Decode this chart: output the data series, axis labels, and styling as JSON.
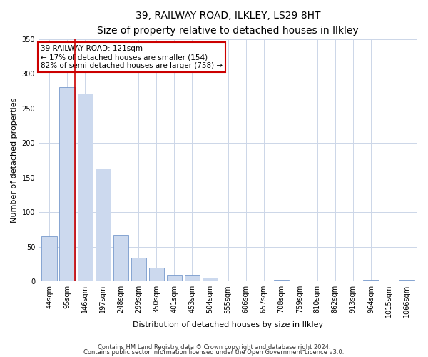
{
  "title1": "39, RAILWAY ROAD, ILKLEY, LS29 8HT",
  "title2": "Size of property relative to detached houses in Ilkley",
  "xlabel": "Distribution of detached houses by size in Ilkley",
  "ylabel": "Number of detached properties",
  "categories": [
    "44sqm",
    "95sqm",
    "146sqm",
    "197sqm",
    "248sqm",
    "299sqm",
    "350sqm",
    "401sqm",
    "453sqm",
    "504sqm",
    "555sqm",
    "606sqm",
    "657sqm",
    "708sqm",
    "759sqm",
    "810sqm",
    "862sqm",
    "913sqm",
    "964sqm",
    "1015sqm",
    "1066sqm"
  ],
  "values": [
    65,
    281,
    272,
    163,
    67,
    34,
    20,
    9,
    10,
    5,
    0,
    0,
    0,
    2,
    0,
    0,
    0,
    0,
    2,
    0,
    2
  ],
  "bar_color": "#ccd9ee",
  "bar_edge_color": "#7799cc",
  "vline_color": "#cc0000",
  "ylim": [
    0,
    350
  ],
  "yticks": [
    0,
    50,
    100,
    150,
    200,
    250,
    300,
    350
  ],
  "annotation_text": "39 RAILWAY ROAD: 121sqm\n← 17% of detached houses are smaller (154)\n82% of semi-detached houses are larger (758) →",
  "annotation_box_color": "#ffffff",
  "annotation_box_edge": "#cc0000",
  "footnote1": "Contains HM Land Registry data © Crown copyright and database right 2024.",
  "footnote2": "Contains public sector information licensed under the Open Government Licence v3.0.",
  "bg_color": "#ffffff",
  "grid_color": "#ccd6e8",
  "title_fontsize": 10,
  "subtitle_fontsize": 9,
  "axis_label_fontsize": 8,
  "tick_fontsize": 7,
  "annotation_fontsize": 7.5,
  "footnote_fontsize": 6
}
